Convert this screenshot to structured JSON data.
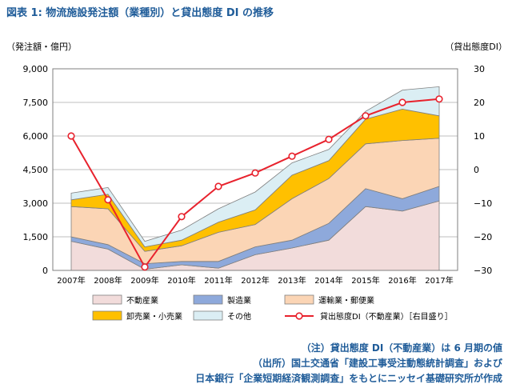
{
  "title": "図表 1: 物流施設発注額（業種別）と貸出態度 DI の推移",
  "notes": [
    "（注）貸出態度 DI（不動産業）は 6 月期の値",
    "（出所）国土交通省「建設工事受注動態統計調査」および",
    "日本銀行「企業短期経済観測調査」をもとにニッセイ基礎研究所が作成"
  ],
  "chart_data": {
    "type": "area",
    "stacked": true,
    "categories": [
      "2007年",
      "2008年",
      "2009年",
      "2010年",
      "2011年",
      "2012年",
      "2013年",
      "2014年",
      "2015年",
      "2016年",
      "2017年"
    ],
    "y_left": {
      "label": "（発注額・億円）",
      "ylim": [
        0,
        9000
      ],
      "ticks": [
        0,
        1500,
        3000,
        4500,
        6000,
        7500,
        9000
      ],
      "tick_labels": [
        "0",
        "1,500",
        "3,000",
        "4,500",
        "6,000",
        "7,500",
        "9,000"
      ]
    },
    "y_right": {
      "label": "（貸出態度DI）",
      "ylim": [
        -30,
        30
      ],
      "ticks": [
        -30,
        -20,
        -10,
        0,
        10,
        20,
        30
      ],
      "tick_labels": [
        "−30",
        "−20",
        "−10",
        "0",
        "10",
        "20",
        "30"
      ]
    },
    "series": [
      {
        "name": "不動産業",
        "color": "#f2dcdb",
        "values": [
          1300,
          950,
          50,
          250,
          100,
          700,
          1000,
          1350,
          2850,
          2650,
          3100
        ]
      },
      {
        "name": "製造業",
        "color": "#8ea9db",
        "values": [
          200,
          200,
          250,
          150,
          300,
          350,
          350,
          750,
          800,
          550,
          650
        ]
      },
      {
        "name": "運輸業・郵便業",
        "color": "#fbd5b5",
        "values": [
          1350,
          1600,
          550,
          700,
          1300,
          1000,
          1850,
          2000,
          2000,
          2600,
          2150
        ]
      },
      {
        "name": "卸売業・小売業",
        "color": "#ffc000",
        "values": [
          300,
          650,
          200,
          250,
          450,
          650,
          1050,
          800,
          1100,
          1400,
          1000
        ]
      },
      {
        "name": "その他",
        "color": "#dbeef4",
        "values": [
          300,
          300,
          250,
          450,
          600,
          800,
          550,
          500,
          350,
          850,
          1300
        ]
      }
    ],
    "line": {
      "name": "貸出態度DI（不動産業）［右目盛り］",
      "color": "#e8222d",
      "axis": "right",
      "values": [
        10,
        -9,
        -29,
        -14,
        -5,
        -1,
        4,
        9,
        16,
        20,
        21
      ]
    },
    "legend": {
      "placement": "bottom"
    },
    "grid": {
      "y": true,
      "x": false
    }
  }
}
